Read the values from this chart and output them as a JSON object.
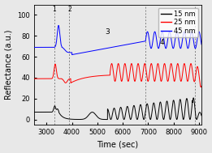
{
  "title": "",
  "xlabel": "Time (sec)",
  "ylabel": "Reflectance (a.u.)",
  "xlim": [
    2500,
    9100
  ],
  "ylim": [
    -5,
    110
  ],
  "xticks": [
    3000,
    4000,
    5000,
    6000,
    7000,
    8000,
    9000
  ],
  "yticks": [
    0,
    20,
    40,
    60,
    80,
    100
  ],
  "legend_labels": [
    "15 nm",
    "25 nm",
    "45 nm"
  ],
  "line_colors": [
    "black",
    "red",
    "blue"
  ],
  "vline_x": [
    3300,
    3900,
    6900,
    8850
  ],
  "background_color": "#e8e8e8",
  "label_fontsize": 7,
  "tick_fontsize": 6,
  "legend_fontsize": 6
}
